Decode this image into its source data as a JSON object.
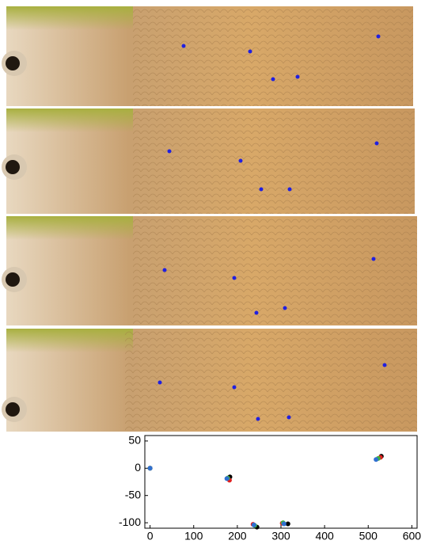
{
  "chart_data": {
    "type": "scatter",
    "xlim": [
      -12,
      612
    ],
    "ylim": [
      -110,
      60
    ],
    "xticks": [
      0,
      100,
      200,
      300,
      400,
      500,
      600
    ],
    "yticks": [
      50,
      0,
      -50,
      -100
    ],
    "series": [
      {
        "color": "#000000",
        "x": [
          0,
          183,
          245,
          316,
          530
        ],
        "values": [
          0,
          -16,
          -108,
          -102,
          22
        ]
      },
      {
        "color": "#e02020",
        "x": [
          0,
          182,
          236,
          303,
          528
        ],
        "values": [
          0,
          -22,
          -103,
          -101,
          20
        ]
      },
      {
        "color": "#40b040",
        "x": [
          0,
          178,
          240,
          305,
          523
        ],
        "values": [
          0,
          -18,
          -105,
          -100,
          18
        ]
      },
      {
        "color": "#3070d0",
        "x": [
          0,
          176,
          238,
          307,
          518
        ],
        "values": [
          0,
          -19,
          -104,
          -102,
          16
        ]
      }
    ]
  }
}
